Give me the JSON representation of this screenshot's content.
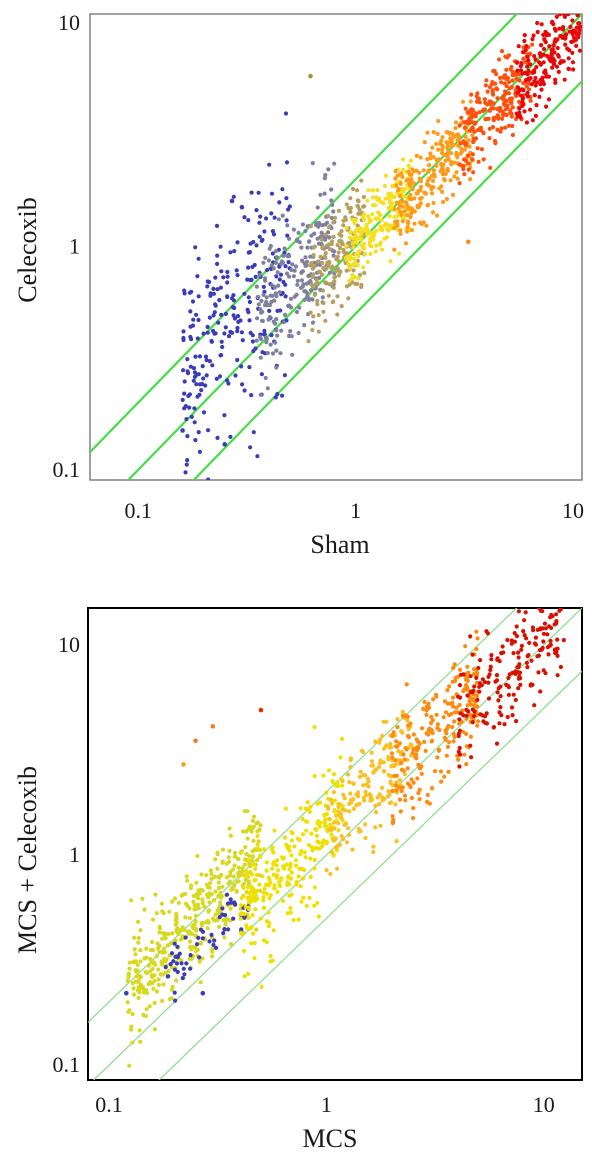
{
  "chart_data": [
    {
      "id": "panel-top",
      "type": "scatter",
      "title": "",
      "xlabel": "Sham",
      "ylabel": "Celecoxib",
      "xscale": "log",
      "yscale": "log",
      "xlim": [
        0.06,
        11
      ],
      "ylim": [
        0.09,
        11
      ],
      "xticks": [
        {
          "value": 0.1,
          "label": "0.1"
        },
        {
          "value": 1,
          "label": "1"
        },
        {
          "value": 10,
          "label": "10"
        }
      ],
      "yticks": [
        {
          "value": 0.1,
          "label": "0.1"
        },
        {
          "value": 1,
          "label": "1"
        },
        {
          "value": 10,
          "label": "10"
        }
      ],
      "reference_lines": [
        {
          "slope": 1,
          "intercept_factor": 0.5
        },
        {
          "slope": 1,
          "intercept_factor": 1
        },
        {
          "slope": 1,
          "intercept_factor": 2
        }
      ],
      "reference_line_color": "#44dd44",
      "points_description": "~1500 genes spread along the diagonal, colored by expression level",
      "color_scale": [
        "#2b2fb0",
        "#7a7a9a",
        "#a29a70",
        "#e8e000",
        "#ff9a1a",
        "#ff4a10",
        "#e00000"
      ],
      "point_clusters": [
        {
          "x_range": [
            0.16,
            0.5
          ],
          "y_center_factor": 1.7,
          "spread": 0.55,
          "count": 260,
          "color": "#3a3cb8"
        },
        {
          "x_range": [
            0.35,
            0.8
          ],
          "y_center_factor": 1.35,
          "spread": 0.35,
          "count": 220,
          "color": "#8080a0"
        },
        {
          "x_range": [
            0.6,
            1.1
          ],
          "y_center_factor": 1.1,
          "spread": 0.25,
          "count": 180,
          "color": "#b4a060"
        },
        {
          "x_range": [
            0.9,
            1.8
          ],
          "y_center_factor": 1.0,
          "spread": 0.2,
          "count": 200,
          "color": "#f4e020"
        },
        {
          "x_range": [
            1.5,
            3.5
          ],
          "y_center_factor": 0.95,
          "spread": 0.2,
          "count": 240,
          "color": "#ff9a1a"
        },
        {
          "x_range": [
            3,
            6.5
          ],
          "y_center_factor": 0.95,
          "spread": 0.2,
          "count": 220,
          "color": "#ff5010"
        },
        {
          "x_range": [
            5.5,
            10.8
          ],
          "y_center_factor": 0.9,
          "spread": 0.2,
          "count": 200,
          "color": "#e80808"
        }
      ],
      "outliers": [
        {
          "x": 0.62,
          "y": 5.8,
          "color": "#90a040"
        },
        {
          "x": 0.27,
          "y": 1.6,
          "color": "#3a3cb8"
        },
        {
          "x": 0.3,
          "y": 1.5,
          "color": "#3a3cb8"
        },
        {
          "x": 0.25,
          "y": 0.13,
          "color": "#3a3cb8"
        },
        {
          "x": 0.16,
          "y": 0.15,
          "color": "#3a3cb8"
        },
        {
          "x": 3.3,
          "y": 1.05,
          "color": "#ff8a1a"
        }
      ]
    },
    {
      "id": "panel-bottom",
      "type": "scatter",
      "title": "",
      "xlabel": "MCS",
      "ylabel": "MCS + Celecoxib",
      "xscale": "log",
      "yscale": "log",
      "xlim": [
        0.08,
        15
      ],
      "ylim": [
        0.085,
        15
      ],
      "xticks": [
        {
          "value": 0.1,
          "label": "0.1"
        },
        {
          "value": 1,
          "label": "1"
        },
        {
          "value": 10,
          "label": "10"
        }
      ],
      "yticks": [
        {
          "value": 0.1,
          "label": "0.1"
        },
        {
          "value": 1,
          "label": "1"
        },
        {
          "value": 10,
          "label": "10"
        }
      ],
      "reference_lines": [
        {
          "slope": 1,
          "intercept_factor": 0.5
        },
        {
          "slope": 1,
          "intercept_factor": 1
        },
        {
          "slope": 1,
          "intercept_factor": 2
        }
      ],
      "reference_line_color": "#88dd88",
      "points_description": "~1500 genes spread along and above the diagonal, colored by expression level",
      "color_scale": [
        "#2b2fb0",
        "#a0b040",
        "#e8e800",
        "#f8b020",
        "#ff8a10",
        "#e02000",
        "#c00000"
      ],
      "point_clusters": [
        {
          "x_range": [
            0.12,
            0.5
          ],
          "y_center_factor": 2.0,
          "spread": 0.3,
          "count": 420,
          "color": "#d8d820"
        },
        {
          "x_range": [
            0.18,
            0.45
          ],
          "y_center_factor": 1.4,
          "spread": 0.15,
          "count": 60,
          "color": "#3a3cb8"
        },
        {
          "x_range": [
            0.4,
            1.2
          ],
          "y_center_factor": 1.35,
          "spread": 0.3,
          "count": 260,
          "color": "#eee000"
        },
        {
          "x_range": [
            1.0,
            2.5
          ],
          "y_center_factor": 1.3,
          "spread": 0.3,
          "count": 180,
          "color": "#f8c020"
        },
        {
          "x_range": [
            2.0,
            5.0
          ],
          "y_center_factor": 1.2,
          "spread": 0.3,
          "count": 220,
          "color": "#ff8a10"
        },
        {
          "x_range": [
            4.0,
            12.5
          ],
          "y_center_factor": 1.1,
          "spread": 0.3,
          "count": 200,
          "color": "#d81000"
        }
      ],
      "outliers": [
        {
          "x": 0.3,
          "y": 4.1,
          "color": "#ee8020"
        },
        {
          "x": 0.5,
          "y": 4.9,
          "color": "#e03000"
        },
        {
          "x": 0.25,
          "y": 3.5,
          "color": "#ee8020"
        },
        {
          "x": 0.22,
          "y": 2.7,
          "color": "#f0a020"
        },
        {
          "x": 0.12,
          "y": 0.22,
          "color": "#3a3cb8"
        },
        {
          "x": 0.27,
          "y": 0.22,
          "color": "#3a3cb8"
        }
      ]
    }
  ]
}
